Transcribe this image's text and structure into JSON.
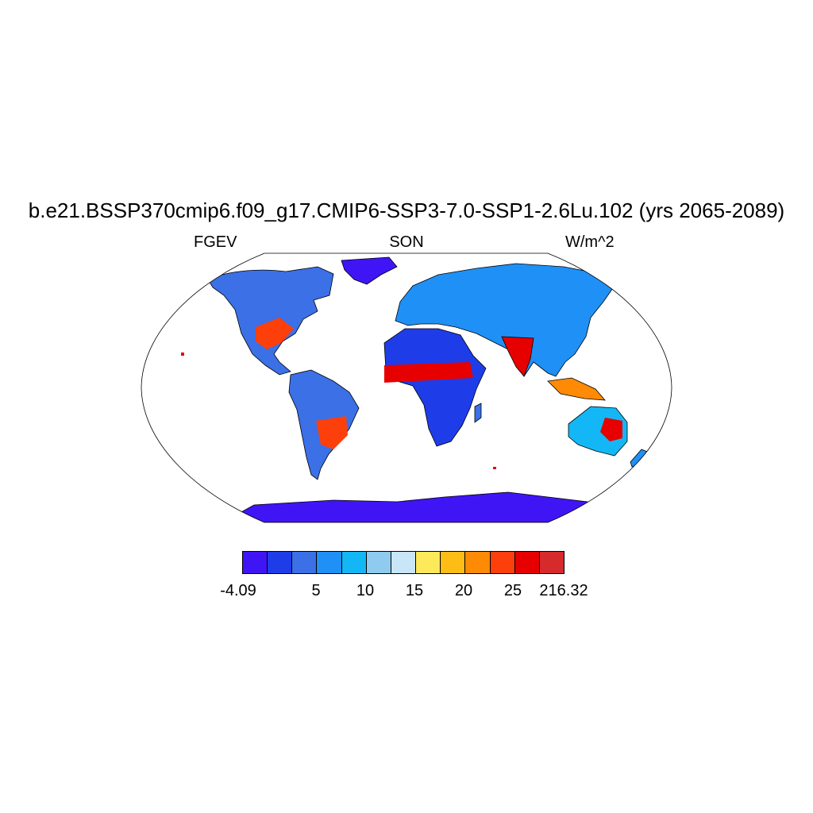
{
  "title": "b.e21.BSSP370cmip6.f09_g17.CMIP6-SSP3-7.0-SSP1-2.6Lu.102 (yrs 2065-2089)",
  "subtitle_left": "FGEV",
  "subtitle_center": "SON",
  "subtitle_right": "W/m^2",
  "colorbar": {
    "colors": [
      "#4015f5",
      "#1e3de9",
      "#3b70e6",
      "#1f90f5",
      "#14b7f5",
      "#8ecbef",
      "#c8e6f7",
      "#fee95a",
      "#fdbd15",
      "#fe8a06",
      "#fd3f0c",
      "#e60000",
      "#d62a2c"
    ],
    "labels": [
      "-4.09",
      "5",
      "10",
      "15",
      "20",
      "25",
      "216.32"
    ]
  },
  "map": {
    "projection": "Robinson",
    "ocean_color": "#ffffff",
    "legend_placement": "bottom"
  }
}
